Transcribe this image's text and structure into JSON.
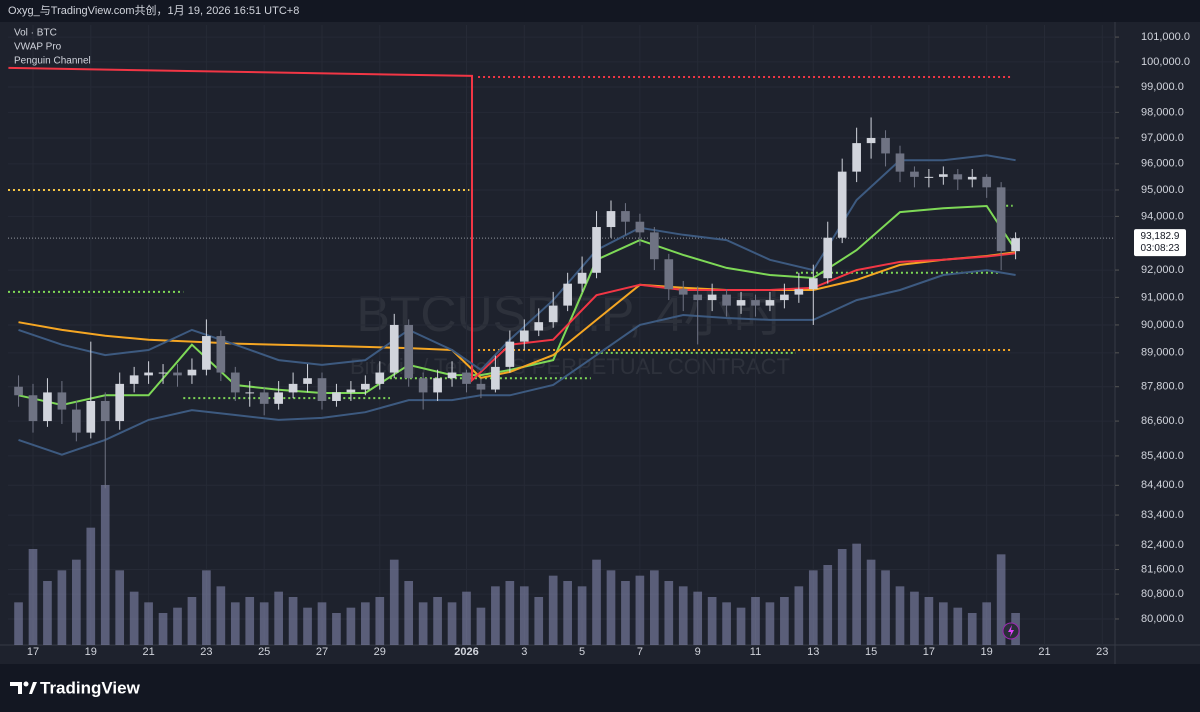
{
  "chart_data": {
    "type": "candlestick",
    "title": "Oxyg_与TradingView.com共创，1月 19, 2026 16:51 UTC+8",
    "legend": [
      "Vol · BTC",
      "VWAP Pro",
      "Penguin Channel"
    ],
    "watermark": [
      "BTCUSDT.P, 4小时",
      "Bitcoin / TetherUS PERPETUAL CONTRACT"
    ],
    "brand": "TradingView",
    "log_scale": true,
    "xlim": [
      -0.865,
      37.44
    ],
    "ylim": [
      79170,
      101490
    ],
    "xticks": [
      {
        "value": 0,
        "label": "17"
      },
      {
        "value": 2,
        "label": "19"
      },
      {
        "value": 4,
        "label": "21"
      },
      {
        "value": 6,
        "label": "23"
      },
      {
        "value": 8,
        "label": "25"
      },
      {
        "value": 10,
        "label": "27"
      },
      {
        "value": 12,
        "label": "29"
      },
      {
        "value": 15,
        "label": "2026"
      },
      {
        "value": 17,
        "label": "3"
      },
      {
        "value": 19,
        "label": "5"
      },
      {
        "value": 21,
        "label": "7"
      },
      {
        "value": 23,
        "label": "9"
      },
      {
        "value": 25,
        "label": "11"
      },
      {
        "value": 27,
        "label": "13"
      },
      {
        "value": 29,
        "label": "15"
      },
      {
        "value": 31,
        "label": "17"
      },
      {
        "value": 33,
        "label": "19"
      },
      {
        "value": 35,
        "label": "21"
      },
      {
        "value": 37,
        "label": "23"
      }
    ],
    "yticks": [
      {
        "value": 101000,
        "label": "101,000.0"
      },
      {
        "value": 100000,
        "label": "100,000.0"
      },
      {
        "value": 99000,
        "label": "99,000.0"
      },
      {
        "value": 98000,
        "label": "98,000.0"
      },
      {
        "value": 97000,
        "label": "97,000.0"
      },
      {
        "value": 96000,
        "label": "96,000.0"
      },
      {
        "value": 95000,
        "label": "95,000.0"
      },
      {
        "value": 94000,
        "label": "94,000.0"
      },
      {
        "value": 92000,
        "label": "92,000.0"
      },
      {
        "value": 91000,
        "label": "91,000.0"
      },
      {
        "value": 90000,
        "label": "90,000.0"
      },
      {
        "value": 89000,
        "label": "89,000.0"
      },
      {
        "value": 87800,
        "label": "87,800.0"
      },
      {
        "value": 86600,
        "label": "86,600.0"
      },
      {
        "value": 85400,
        "label": "85,400.0"
      },
      {
        "value": 84400,
        "label": "84,400.0"
      },
      {
        "value": 83400,
        "label": "83,400.0"
      },
      {
        "value": 82400,
        "label": "82,400.0"
      },
      {
        "value": 81600,
        "label": "81,600.0"
      },
      {
        "value": 80800,
        "label": "80,800.0"
      },
      {
        "value": 80000,
        "label": "80,000.0"
      }
    ],
    "up_color": "#d1d4dc",
    "down_color": "#6f7383",
    "volume_color": "#8d8fb8",
    "x": [
      -0.5,
      0,
      0.5,
      1,
      1.5,
      2,
      2.5,
      3,
      3.5,
      4,
      4.5,
      5,
      5.5,
      6,
      6.5,
      7,
      7.5,
      8,
      8.5,
      9,
      9.5,
      10,
      10.5,
      11,
      11.5,
      12,
      12.5,
      13,
      13.5,
      14,
      14.5,
      15,
      15.5,
      16,
      16.5,
      17,
      17.5,
      18,
      18.5,
      19,
      19.5,
      20,
      20.5,
      21,
      21.5,
      22,
      22.5,
      23,
      23.5,
      24,
      24.5,
      25,
      25.5,
      26,
      26.5,
      27,
      27.5,
      28,
      28.5,
      29,
      29.5,
      30,
      30.5,
      31,
      31.5,
      32,
      32.5,
      33,
      33.5,
      34
    ],
    "open": [
      87800,
      87500,
      86600,
      87600,
      87000,
      86200,
      87300,
      86600,
      87900,
      88200,
      88300,
      88300,
      88200,
      88400,
      89600,
      88300,
      87600,
      87600,
      87200,
      87600,
      87900,
      88100,
      87300,
      87600,
      87700,
      87900,
      88300,
      90000,
      88100,
      87600,
      88100,
      88300,
      87900,
      87700,
      88500,
      89400,
      89800,
      90100,
      90700,
      91500,
      91900,
      93600,
      94200,
      93800,
      93400,
      92400,
      91300,
      91100,
      90900,
      91100,
      90700,
      90900,
      90700,
      90900,
      91100,
      91300,
      91700,
      93200,
      95700,
      96800,
      97000,
      96400,
      95700,
      95500,
      95500,
      95600,
      95400,
      95500,
      95100,
      92700
    ],
    "high": [
      88200,
      87900,
      88100,
      88000,
      87300,
      89400,
      87600,
      88300,
      88500,
      88700,
      88600,
      88600,
      88800,
      90200,
      89800,
      88500,
      88000,
      87800,
      88000,
      88300,
      88600,
      88300,
      87900,
      88000,
      88200,
      88700,
      90400,
      90200,
      88300,
      88400,
      88700,
      88400,
      88100,
      88900,
      89800,
      90200,
      90600,
      91200,
      91900,
      92500,
      94200,
      94600,
      94500,
      94100,
      93600,
      92600,
      91600,
      91400,
      91500,
      91300,
      91200,
      91100,
      91200,
      91500,
      91900,
      92200,
      93800,
      96200,
      97400,
      97800,
      97300,
      96700,
      95900,
      95800,
      95900,
      95800,
      95800,
      95600,
      95300,
      93400
    ],
    "low": [
      87100,
      86200,
      86400,
      86500,
      85900,
      86000,
      84300,
      86300,
      87600,
      87900,
      87900,
      87800,
      87900,
      88200,
      88000,
      87300,
      87100,
      86800,
      87000,
      87400,
      87600,
      87000,
      87100,
      87300,
      87500,
      87700,
      88100,
      87800,
      87000,
      87300,
      87800,
      87600,
      87400,
      87600,
      88300,
      89100,
      89600,
      89900,
      90500,
      91200,
      91700,
      93200,
      93300,
      92900,
      92000,
      90900,
      90500,
      89300,
      90500,
      90300,
      90400,
      90300,
      90500,
      90600,
      90800,
      90000,
      91500,
      93000,
      95300,
      96200,
      95900,
      95300,
      95100,
      95100,
      95200,
      95000,
      95100,
      94700,
      92000,
      92400
    ],
    "close": [
      87500,
      86600,
      87600,
      87000,
      86200,
      87300,
      86600,
      87900,
      88200,
      88300,
      88300,
      88200,
      88400,
      89600,
      88300,
      87600,
      87600,
      87200,
      87600,
      87900,
      88100,
      87300,
      87600,
      87700,
      87900,
      88300,
      90000,
      88100,
      87600,
      88100,
      88300,
      87900,
      87700,
      88500,
      89400,
      89800,
      90100,
      90700,
      91500,
      91900,
      93600,
      94200,
      93800,
      93400,
      92400,
      91300,
      91100,
      90900,
      91100,
      90700,
      90900,
      90700,
      90900,
      91100,
      91300,
      91700,
      93200,
      95700,
      96800,
      97000,
      96400,
      95700,
      95500,
      95500,
      95600,
      95400,
      95500,
      95100,
      92700,
      93182.9
    ],
    "volume": [
      4000,
      9000,
      6000,
      7000,
      8000,
      11000,
      15000,
      7000,
      5000,
      4000,
      3000,
      3500,
      4500,
      7000,
      5500,
      4000,
      4500,
      4000,
      5000,
      4500,
      3500,
      4000,
      3000,
      3500,
      4000,
      4500,
      8000,
      6000,
      4000,
      4500,
      4000,
      5000,
      3500,
      5500,
      6000,
      5500,
      4500,
      6500,
      6000,
      5500,
      8000,
      7000,
      6000,
      6500,
      7000,
      6000,
      5500,
      5000,
      4500,
      4000,
      3500,
      4500,
      4000,
      4500,
      5500,
      7000,
      7500,
      9000,
      9500,
      8000,
      7000,
      5500,
      5000,
      4500,
      4000,
      3500,
      3000,
      4000,
      8500,
      3000
    ],
    "lines": [
      {
        "color": "#7ed957",
        "x": [
          -0.5,
          1,
          2.5,
          4,
          5.5,
          7,
          8.5,
          10,
          11.5,
          13,
          14.5,
          15.5,
          16.5,
          18,
          19.5,
          21,
          22.5,
          24,
          25.5,
          27,
          28.5,
          30,
          31.5,
          33,
          34
        ],
        "values": [
          87500,
          87160,
          87500,
          87500,
          89290,
          87860,
          87690,
          87580,
          87580,
          88570,
          88210,
          88210,
          88390,
          88740,
          92380,
          93110,
          92560,
          92080,
          91820,
          91710,
          92740,
          94160,
          94310,
          94390,
          92740
        ]
      },
      {
        "color": "#f5a623",
        "x": [
          -0.5,
          1,
          2.5,
          4,
          5.5,
          7,
          8.5,
          10,
          11.5,
          13,
          14.5,
          15.5,
          16.5,
          18,
          19.5,
          21,
          22.5,
          24,
          25.5,
          27,
          28.5,
          30,
          31.5,
          33,
          34
        ],
        "values": [
          90100,
          89820,
          89610,
          89470,
          89400,
          89330,
          89290,
          89250,
          89210,
          89170,
          89100,
          88110,
          88320,
          88920,
          90180,
          91460,
          91350,
          91270,
          91270,
          91270,
          91640,
          92190,
          92380,
          92520,
          92660
        ]
      },
      {
        "color": "#f23645",
        "x": [
          -0.85,
          15.19,
          15.19,
          16.5,
          18,
          19.5,
          21,
          22.5,
          24,
          25.5,
          27,
          28.5,
          30,
          31.5,
          33,
          34
        ],
        "values": [
          99760,
          99440,
          88030,
          89290,
          89470,
          91080,
          91460,
          91270,
          91270,
          91270,
          91350,
          92000,
          92300,
          92380,
          92500,
          92620
        ]
      },
      {
        "color": "#3d5a80",
        "x": [
          -0.5,
          1,
          2.5,
          4,
          5.5,
          7,
          8.5,
          10,
          11.5,
          13,
          14.5,
          15.5,
          16.5,
          18,
          19.5,
          21,
          22.5,
          24,
          25.5,
          27,
          28.5,
          30,
          31.5,
          33,
          34
        ],
        "values": [
          89820,
          89290,
          88920,
          89100,
          89820,
          89290,
          88740,
          88570,
          88740,
          89820,
          89100,
          88390,
          89470,
          90900,
          92740,
          93570,
          93310,
          93110,
          92380,
          92000,
          94620,
          96140,
          96140,
          96330,
          96140
        ]
      },
      {
        "color": "#3d5a80",
        "x": [
          -0.5,
          1,
          2.5,
          4,
          5.5,
          7,
          8.5,
          10,
          11.5,
          13,
          14.5,
          15.5,
          16.5,
          18,
          19.5,
          21,
          22.5,
          24,
          25.5,
          27,
          28.5,
          30,
          31.5,
          33,
          34
        ],
        "values": [
          85950,
          85440,
          85950,
          86640,
          86980,
          86810,
          86640,
          86710,
          86910,
          87330,
          87330,
          87500,
          87500,
          87860,
          88920,
          90000,
          90360,
          90250,
          90180,
          90180,
          90900,
          91270,
          91820,
          92000,
          91820
        ]
      }
    ],
    "levels": [
      {
        "value": 95000,
        "from": -0.865,
        "to": 15.1,
        "color": "#f5c542"
      },
      {
        "value": 99400,
        "from": 15.4,
        "to": 33.9,
        "color": "#f23645"
      },
      {
        "value": 89100,
        "from": 15.4,
        "to": 33.9,
        "color": "#f5a623"
      },
      {
        "value": 91200,
        "from": -0.865,
        "to": 5.2,
        "color": "#7ed957"
      },
      {
        "value": 87400,
        "from": 5.2,
        "to": 12.35,
        "color": "#7ed957"
      },
      {
        "value": 88100,
        "from": 12.35,
        "to": 19.3,
        "color": "#7ed957"
      },
      {
        "value": 89000,
        "from": 19.3,
        "to": 26.4,
        "color": "#7ed957"
      },
      {
        "value": 91900,
        "from": 26.4,
        "to": 33.5,
        "color": "#7ed957"
      },
      {
        "value": 94400,
        "from": 33.5,
        "to": 33.9,
        "color": "#7ed957"
      }
    ],
    "last_price": {
      "value": 93182.9,
      "label": "93,182.9"
    },
    "countdown": "03:08:23"
  }
}
